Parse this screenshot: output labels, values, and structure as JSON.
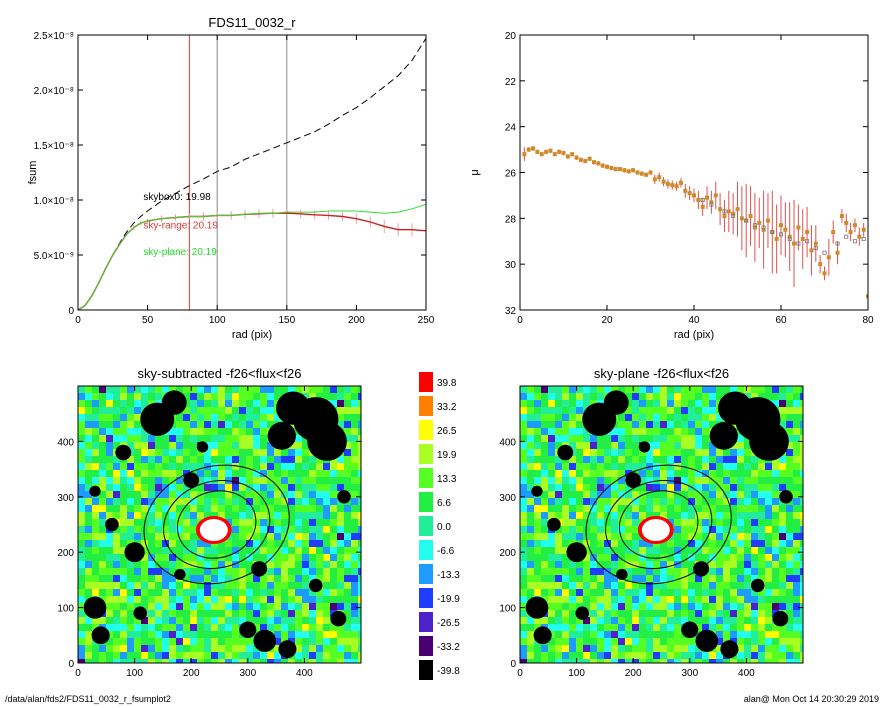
{
  "footer": {
    "path": "/data/alan/fds2/FDS11_0032_r_fsumplot2",
    "stamp": "alan@  Mon Oct 14 20:30:29 2019"
  },
  "chart_data": [
    {
      "type": "line",
      "title": "FDS11_0032_r",
      "xlabel": "rad (pix)",
      "ylabel": "fsum",
      "xlim": [
        0,
        250
      ],
      "ylim": [
        0,
        2.5e-08
      ],
      "x_ticks": [
        0,
        50,
        100,
        150,
        200,
        250
      ],
      "y_ticks": [
        {
          "value": 0,
          "label": "0"
        },
        {
          "value": 5e-09,
          "label": "5.0×10⁻⁹"
        },
        {
          "value": 1e-08,
          "label": "1.0×10⁻⁸"
        },
        {
          "value": 1.5e-08,
          "label": "1.5×10⁻⁸"
        },
        {
          "value": 2e-08,
          "label": "2.0×10⁻⁸"
        },
        {
          "value": 2.5e-08,
          "label": "2.5×10⁻⁸"
        }
      ],
      "vlines": [
        {
          "x": 80,
          "color": "#e0392f"
        },
        {
          "x": 100,
          "color": "#888888"
        },
        {
          "x": 150,
          "color": "#888888"
        }
      ],
      "annotations": [
        {
          "text": "skybox0: 19.98",
          "x": 47,
          "y": 1e-08,
          "color": "#000000"
        },
        {
          "text": "sky-range: 20.19",
          "x": 47,
          "y": 7.4e-09,
          "color": "#e0392f"
        },
        {
          "text": "sky-plane: 20.19",
          "x": 47,
          "y": 5e-09,
          "color": "#22dd22"
        }
      ],
      "series": [
        {
          "color": "#000000",
          "style": "dashed",
          "x": [
            0,
            5,
            10,
            15,
            20,
            25,
            30,
            35,
            40,
            45,
            50,
            60,
            70,
            80,
            90,
            100,
            110,
            120,
            130,
            140,
            150,
            160,
            170,
            180,
            190,
            200,
            210,
            220,
            230,
            240,
            250
          ],
          "y": [
            0,
            4e-10,
            1.3e-09,
            2.5e-09,
            3.8e-09,
            5e-09,
            6.1e-09,
            7.1e-09,
            7.9e-09,
            8.5e-09,
            9e-09,
            9.9e-09,
            1.06e-08,
            1.13e-08,
            1.19e-08,
            1.26e-08,
            1.3e-08,
            1.37e-08,
            1.42e-08,
            1.47e-08,
            1.52e-08,
            1.57e-08,
            1.62e-08,
            1.69e-08,
            1.77e-08,
            1.84e-08,
            1.93e-08,
            2.03e-08,
            2.13e-08,
            2.27e-08,
            2.47e-08
          ]
        },
        {
          "color": "#d02020",
          "style": "solid",
          "errorbars": true,
          "x": [
            0,
            5,
            10,
            15,
            20,
            25,
            30,
            35,
            40,
            45,
            50,
            60,
            70,
            80,
            90,
            100,
            110,
            120,
            130,
            140,
            150,
            160,
            170,
            180,
            190,
            200,
            210,
            220,
            230,
            240,
            250
          ],
          "y": [
            0,
            4e-10,
            1.3e-09,
            2.5e-09,
            3.8e-09,
            5e-09,
            6e-09,
            6.9e-09,
            7.5e-09,
            7.9e-09,
            8.1e-09,
            8.3e-09,
            8.4e-09,
            8.5e-09,
            8.5e-09,
            8.6e-09,
            8.6e-09,
            8.7e-09,
            8.75e-09,
            8.8e-09,
            8.8e-09,
            8.75e-09,
            8.65e-09,
            8.6e-09,
            8.5e-09,
            8.3e-09,
            8e-09,
            7.6e-09,
            7.3e-09,
            7.3e-09,
            7.2e-09
          ],
          "err": [
            0,
            1e-10,
            1e-10,
            1e-10,
            1e-10,
            1e-10,
            1e-10,
            1e-10,
            2e-10,
            2e-10,
            2e-10,
            3e-10,
            3e-10,
            3e-10,
            4e-10,
            4e-10,
            4e-10,
            4e-10,
            4e-10,
            4e-10,
            4e-10,
            4e-10,
            4e-10,
            4e-10,
            4e-10,
            5e-10,
            5e-10,
            6e-10,
            6e-10,
            6e-10,
            6e-10
          ]
        },
        {
          "color": "#33dd33",
          "style": "solid",
          "x": [
            0,
            5,
            10,
            15,
            20,
            25,
            30,
            35,
            40,
            45,
            50,
            60,
            70,
            80,
            90,
            100,
            110,
            120,
            130,
            140,
            150,
            160,
            170,
            180,
            190,
            200,
            210,
            220,
            230,
            240,
            250
          ],
          "y": [
            0,
            4e-10,
            1.3e-09,
            2.5e-09,
            3.8e-09,
            5e-09,
            6e-09,
            6.9e-09,
            7.5e-09,
            7.9e-09,
            8.1e-09,
            8.3e-09,
            8.4e-09,
            8.5e-09,
            8.5e-09,
            8.6e-09,
            8.6e-09,
            8.7e-09,
            8.8e-09,
            8.8e-09,
            8.9e-09,
            8.9e-09,
            8.9e-09,
            9e-09,
            9e-09,
            9e-09,
            8.9e-09,
            8.8e-09,
            8.9e-09,
            9.2e-09,
            9.6e-09
          ]
        }
      ]
    },
    {
      "type": "scatter",
      "title": "",
      "xlabel": "rad (pix)",
      "ylabel": "μ",
      "xlim": [
        0,
        80
      ],
      "ylim": [
        32,
        20
      ],
      "x_ticks": [
        0,
        20,
        40,
        60,
        80
      ],
      "y_ticks": [
        20,
        22,
        24,
        26,
        28,
        30,
        32
      ],
      "series": [
        {
          "color": "#d08a2a",
          "marker": "square",
          "errcolor": "#e05050",
          "x": [
            1,
            2,
            3,
            4,
            5,
            6,
            7,
            8,
            9,
            10,
            11,
            12,
            13,
            14,
            15,
            16,
            17,
            18,
            19,
            20,
            21,
            22,
            23,
            24,
            25,
            26,
            27,
            28,
            29,
            30,
            31,
            32,
            33,
            34,
            35,
            36,
            37,
            38,
            39,
            40,
            41,
            42,
            43,
            44,
            45,
            46,
            47,
            48,
            49,
            50,
            51,
            52,
            53,
            54,
            55,
            56,
            57,
            58,
            59,
            60,
            61,
            62,
            63,
            64,
            65,
            66,
            67,
            68,
            69,
            70,
            71,
            72,
            73,
            74,
            75,
            76,
            77,
            78,
            79,
            80
          ],
          "y": [
            25.2,
            25.0,
            24.95,
            25.1,
            25.2,
            25.1,
            25.05,
            25.2,
            25.1,
            25.15,
            25.3,
            25.2,
            25.35,
            25.45,
            25.5,
            25.4,
            25.55,
            25.6,
            25.7,
            25.75,
            25.8,
            25.85,
            25.85,
            25.9,
            25.95,
            25.9,
            26.0,
            26.05,
            26.1,
            26.0,
            26.3,
            26.2,
            26.4,
            26.5,
            26.55,
            26.6,
            26.45,
            26.8,
            26.9,
            27.0,
            27.2,
            27.5,
            27.1,
            27.3,
            27.0,
            27.6,
            27.9,
            27.7,
            27.8,
            27.6,
            28.0,
            28.1,
            27.9,
            28.4,
            28.2,
            28.5,
            28.1,
            28.6,
            28.9,
            28.3,
            28.5,
            28.8,
            29.1,
            28.4,
            28.9,
            28.6,
            29.4,
            29.1,
            30.0,
            30.4,
            29.7,
            28.6,
            29.5,
            27.9,
            28.2,
            28.6,
            28.3,
            28.8,
            28.5,
            31.4
          ],
          "err": [
            0.3,
            0.1,
            0.1,
            0.1,
            0.1,
            0.1,
            0.1,
            0.1,
            0.1,
            0.1,
            0.1,
            0.1,
            0.1,
            0.1,
            0.1,
            0.1,
            0.1,
            0.1,
            0.1,
            0.1,
            0.1,
            0.1,
            0.1,
            0.1,
            0.1,
            0.1,
            0.1,
            0.1,
            0.1,
            0.1,
            0.2,
            0.2,
            0.2,
            0.2,
            0.2,
            0.2,
            0.2,
            0.3,
            0.3,
            0.3,
            0.4,
            0.4,
            0.5,
            0.5,
            0.6,
            0.7,
            0.7,
            0.9,
            0.9,
            1.2,
            1.4,
            1.6,
            1.3,
            1.5,
            1.1,
            1.7,
            1.2,
            1.8,
            1.5,
            1.3,
            1.2,
            1.5,
            1.9,
            1.0,
            1.3,
            1.1,
            1.1,
            0.8,
            0.4,
            0.3,
            0.8,
            0.5,
            0.5,
            0.3,
            0.4,
            0.4,
            0.3,
            0.4,
            0.3,
            0.1
          ]
        },
        {
          "color": "#777777",
          "marker": "square",
          "x": [
            42,
            44,
            47,
            49,
            52,
            54,
            56,
            58,
            60,
            62,
            64,
            66,
            68,
            70,
            73,
            75,
            77,
            79
          ],
          "y": [
            27.2,
            27.4,
            27.7,
            27.9,
            28.1,
            28.3,
            28.4,
            28.6,
            28.7,
            28.9,
            29.1,
            29.0,
            29.3,
            29.5,
            29.1,
            28.8,
            29.0,
            28.9
          ]
        }
      ]
    },
    {
      "type": "heatmap",
      "title": "sky-subtracted -f26<flux<f26",
      "xlim": [
        0,
        500
      ],
      "ylim": [
        0,
        500
      ],
      "x_ticks": [
        0,
        100,
        200,
        300,
        400
      ],
      "y_ticks": [
        0,
        100,
        200,
        300,
        400
      ]
    },
    {
      "type": "heatmap",
      "title": "sky-plane -f26<flux<f26",
      "xlim": [
        0,
        500
      ],
      "ylim": [
        0,
        500
      ],
      "x_ticks": [
        0,
        100,
        200,
        300,
        400
      ],
      "y_ticks": [
        0,
        100,
        200,
        300,
        400
      ]
    },
    {
      "type": "colorbar",
      "levels": [
        {
          "label": "39.8",
          "color": "#ff0000"
        },
        {
          "label": "33.2",
          "color": "#ff8000"
        },
        {
          "label": "26.5",
          "color": "#ffff00"
        },
        {
          "label": "19.9",
          "color": "#aaff22"
        },
        {
          "label": "13.3",
          "color": "#55ff22"
        },
        {
          "label": "6.6",
          "color": "#22ee44"
        },
        {
          "label": "0.0",
          "color": "#22ee99"
        },
        {
          "label": "-6.6",
          "color": "#22ffee"
        },
        {
          "label": "-13.3",
          "color": "#1e9bff"
        },
        {
          "label": "-19.9",
          "color": "#1e3dff"
        },
        {
          "label": "-26.5",
          "color": "#4b22cc"
        },
        {
          "label": "-33.2",
          "color": "#4a0070"
        },
        {
          "label": "-39.8",
          "color": "#000000"
        }
      ]
    }
  ]
}
